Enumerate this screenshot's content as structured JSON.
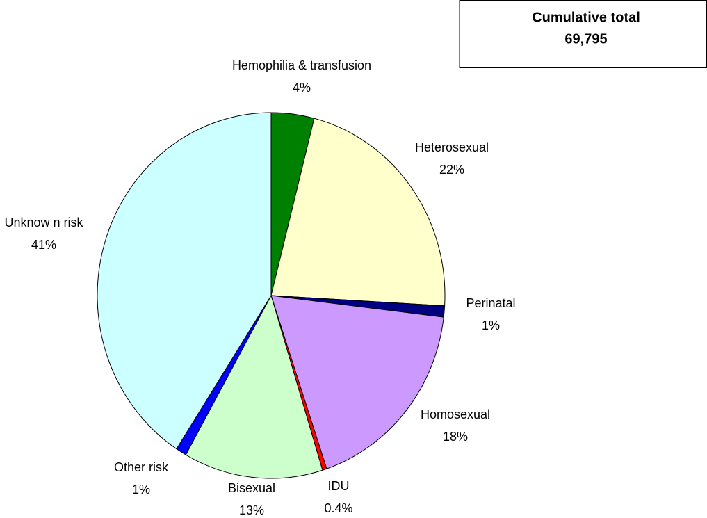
{
  "chart_data": {
    "type": "pie",
    "annotation": [
      "Cumulative total",
      "69,795"
    ],
    "categories": [
      "Hemophilia & transfusion",
      "Heterosexual",
      "Perinatal",
      "Homosexual",
      "IDU",
      "Bisexual",
      "Other risk",
      "Unknow n risk"
    ],
    "values": [
      4,
      22,
      1,
      18,
      0.4,
      13,
      1,
      41
    ],
    "value_labels": [
      "4%",
      "22%",
      "1%",
      "18%",
      "0.4%",
      "13%",
      "1%",
      "41%"
    ],
    "colors": [
      "#008000",
      "#ffffcc",
      "#000080",
      "#cc99ff",
      "#ff0000",
      "#ccffcc",
      "#0000ff",
      "#ccffff"
    ]
  }
}
